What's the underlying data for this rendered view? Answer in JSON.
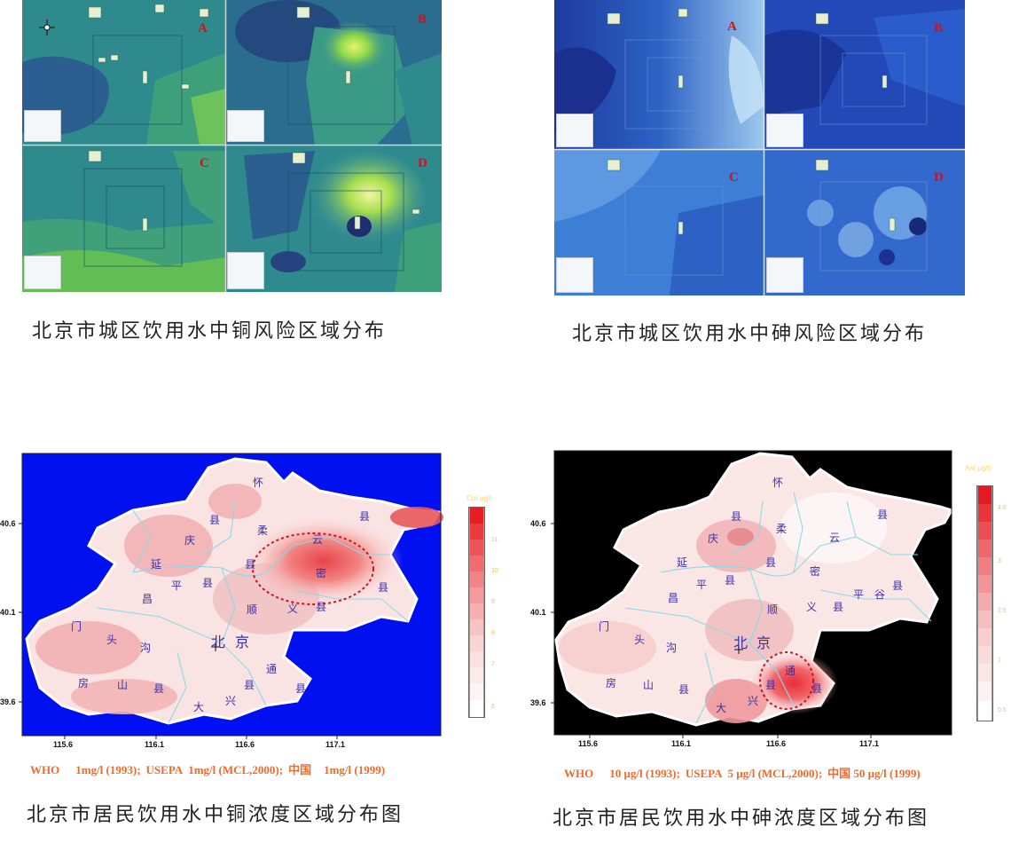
{
  "captions": {
    "cu_risk": "北京市城区饮用水中铜风险区域分布",
    "as_risk": "北京市城区饮用水中砷风险区域分布",
    "cu_conc": "北京市居民饮用水中铜浓度区域分布图",
    "as_conc": "北京市居民饮用水中砷浓度区域分布图"
  },
  "quadrant_labels": [
    "A",
    "B",
    "C",
    "D"
  ],
  "standards": {
    "cu": [
      "WHO",
      "1mg/l (1993);",
      "USEPA",
      "1mg/l (MCL,2000);",
      "中国",
      "1mg/l (1999)"
    ],
    "as": [
      "WHO",
      "10 μg/l (1993);",
      "USEPA",
      "5 μg/l (MCL,2000);",
      "中国 50 μg/l (1999)"
    ]
  },
  "axes": {
    "x_ticks": [
      "115.6",
      "116.1",
      "116.6",
      "117.1"
    ],
    "y_ticks": [
      "40.6",
      "40.1",
      "39.6"
    ]
  },
  "colorbar": {
    "cu_unit": "Cu( μg/l",
    "as_unit": "As( μg/l)",
    "cu_ticks": [
      "11",
      "10",
      "9",
      "8",
      "7",
      "6"
    ],
    "as_ticks": [
      "4.0",
      "3",
      "2.5",
      "1",
      "0.5"
    ]
  },
  "places_cu": [
    "怀",
    "县",
    "县",
    "庆",
    "柔",
    "云",
    "延",
    "县",
    "密",
    "平",
    "县",
    "县",
    "昌",
    "顺",
    "义",
    "县",
    "门",
    "头",
    "沟",
    "北",
    "京",
    "通",
    "房",
    "山",
    "县",
    "县",
    "县",
    "大",
    "兴"
  ],
  "places_as": [
    "怀",
    "县",
    "县",
    "庆",
    "柔",
    "云",
    "延",
    "县",
    "密",
    "平",
    "县",
    "平",
    "谷",
    "县",
    "昌",
    "顺",
    "义",
    "县",
    "门",
    "头",
    "沟",
    "北",
    "京",
    "通",
    "房",
    "山",
    "县",
    "县",
    "县",
    "大",
    "兴"
  ],
  "colors": {
    "cu_background": "#0010f0",
    "as_background": "#000000",
    "hotspot_ring": "#d0121b",
    "standards_text": "#ef6b2a",
    "place_text": "#3a2fa5"
  }
}
